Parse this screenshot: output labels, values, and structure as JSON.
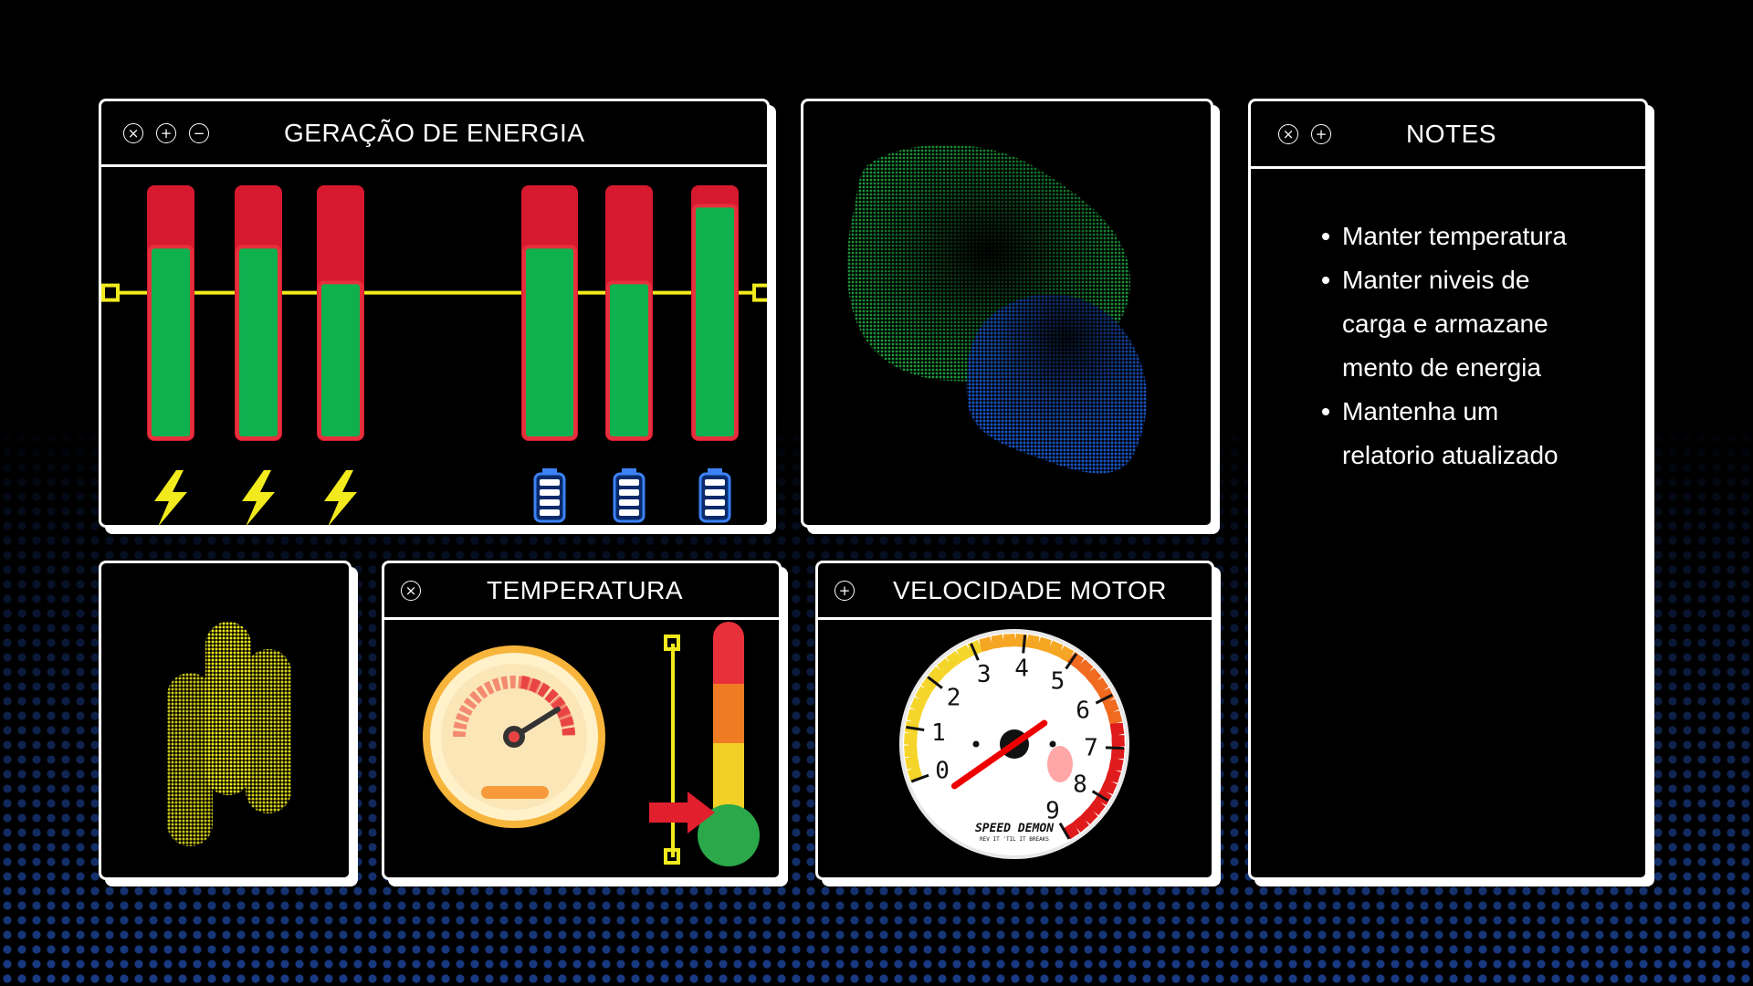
{
  "windows": {
    "energy": {
      "title": "GERAÇÃO DE ENERGIA",
      "controls": [
        "close",
        "add",
        "minimize"
      ],
      "bars": [
        {
          "group": "generation",
          "icon": "lightning-icon",
          "level": 0.76
        },
        {
          "group": "generation",
          "icon": "lightning-icon",
          "level": 0.76
        },
        {
          "group": "generation",
          "icon": "lightning-icon",
          "level": 0.62
        },
        {
          "group": "storage",
          "icon": "battery-icon",
          "level": 0.76
        },
        {
          "group": "storage",
          "icon": "battery-icon",
          "level": 0.62
        },
        {
          "group": "storage",
          "icon": "battery-icon",
          "level": 0.92
        }
      ],
      "threshold_level": 0.58
    },
    "blob": {
      "colors": {
        "green": "#1e9c3c",
        "blue": "#1a55c8"
      }
    },
    "notes": {
      "title": "NOTES",
      "controls": [
        "close",
        "add"
      ],
      "items": [
        {
          "lines": [
            "Manter temperatura"
          ]
        },
        {
          "lines": [
            "Manter niveis de",
            "carga e armazane",
            "mento de energia"
          ]
        },
        {
          "lines": [
            "Mantenha um",
            "relatorio atualizado"
          ]
        }
      ]
    },
    "temperature": {
      "title": "TEMPERATURA",
      "controls": [
        "close"
      ],
      "level": 0.2
    },
    "motor": {
      "title": "VELOCIDADE MOTOR",
      "controls": [
        "add"
      ],
      "tach_numbers": [
        "0",
        "1",
        "2",
        "3",
        "4",
        "5",
        "6",
        "7",
        "8",
        "9"
      ],
      "brand": "SPEED DEMON",
      "tagline": "REV IT 'TIL IT BREAKS",
      "needle_value": 0.5
    }
  },
  "colors": {
    "red": "#d7192f",
    "green": "#0fb14f",
    "yellow": "#f2ea1d",
    "blue": "#1a55c8",
    "border": "#ffffff"
  }
}
